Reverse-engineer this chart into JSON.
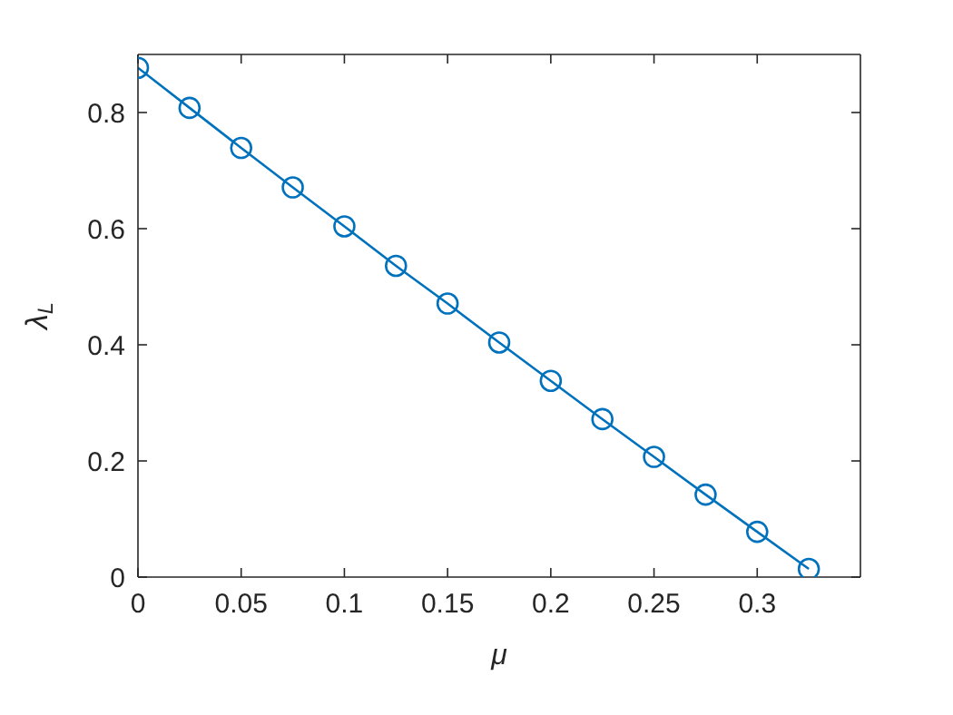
{
  "chart_data": {
    "type": "line",
    "xlabel": "μ",
    "ylabel": "λ$_{L}$",
    "x": [
      0,
      0.025,
      0.05,
      0.075,
      0.1,
      0.125,
      0.15,
      0.175,
      0.2,
      0.225,
      0.25,
      0.275,
      0.3,
      0.325
    ],
    "series": [
      {
        "color": "#0072bd",
        "values": [
          0.877,
          0.808,
          0.739,
          0.671,
          0.604,
          0.536,
          0.471,
          0.404,
          0.338,
          0.272,
          0.207,
          0.142,
          0.078,
          0.014
        ]
      }
    ],
    "xlim": [
      0,
      0.35
    ],
    "xticks": [
      0,
      0.05,
      0.1,
      0.15,
      0.2,
      0.25,
      0.3
    ],
    "ylim": [
      0,
      0.9
    ],
    "yticks": [
      0,
      0.2,
      0.4,
      0.6,
      0.8
    ],
    "marker": "circle",
    "line_style": "solid",
    "grid": false,
    "legend": false
  }
}
